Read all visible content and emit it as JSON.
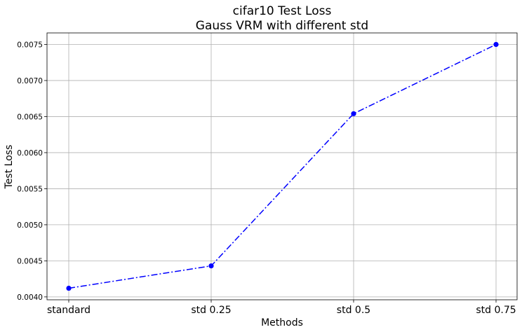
{
  "chart_data": {
    "type": "line",
    "title": [
      "cifar10 Test Loss",
      "Gauss VRM with different std"
    ],
    "xlabel": "Methods",
    "ylabel": "Test Loss",
    "categories": [
      "standard",
      "std 0.25",
      "std 0.5",
      "std 0.75"
    ],
    "series": [
      {
        "values": [
          0.00412,
          0.00443,
          0.00654,
          0.0075
        ],
        "color": "#0000ff",
        "line_style": "dashdot",
        "marker": "circle"
      }
    ],
    "yticks": [
      "0.0040",
      "0.0045",
      "0.0050",
      "0.0055",
      "0.0060",
      "0.0065",
      "0.0070",
      "0.0075"
    ],
    "ylim": [
      0.00396,
      0.00766
    ],
    "grid": true
  }
}
